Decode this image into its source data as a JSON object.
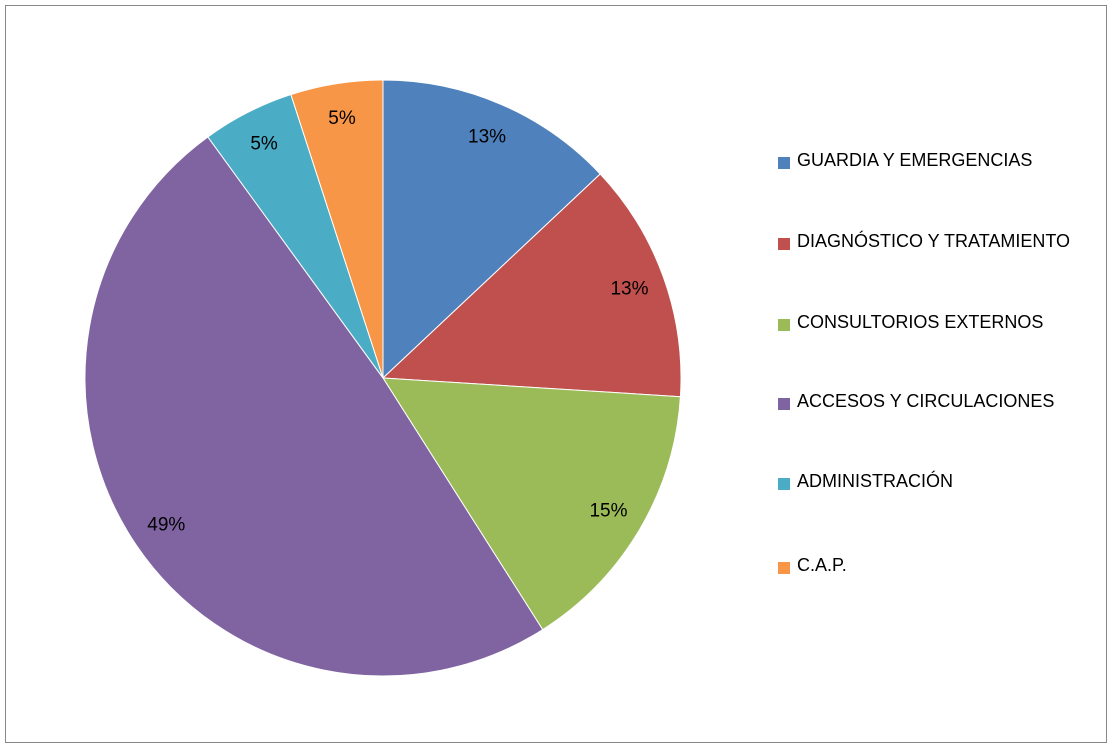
{
  "chart_data": {
    "type": "pie",
    "categories": [
      "GUARDIA Y EMERGENCIAS",
      "DIAGNÓSTICO Y TRATAMIENTO",
      "CONSULTORIOS EXTERNOS",
      "ACCESOS Y CIRCULACIONES",
      "ADMINISTRACIÓN",
      "C.A.P."
    ],
    "values": [
      13,
      13,
      15,
      49,
      5,
      5
    ],
    "value_labels": [
      "13%",
      "13%",
      "15%",
      "49%",
      "5%",
      "5%"
    ],
    "colors": [
      "#4f81bd",
      "#c0504d",
      "#9bbb59",
      "#8064a2",
      "#4bacc6",
      "#f79646"
    ],
    "legend": "right"
  }
}
